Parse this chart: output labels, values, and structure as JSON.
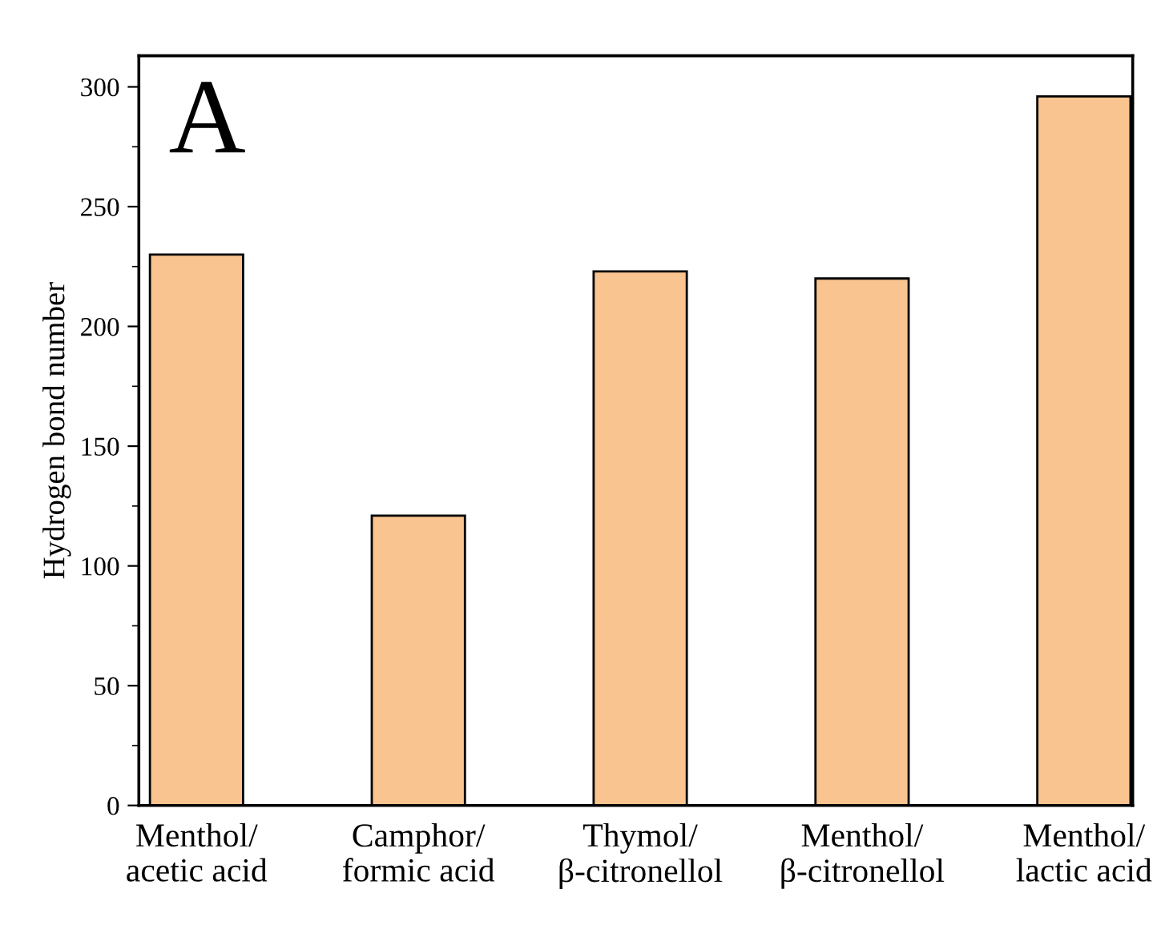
{
  "chart_data": {
    "type": "bar",
    "ylabel": "Hydrogen bond number",
    "categories": [
      "Menthol/\nacetic acid",
      "Camphor/\nformic acid",
      "Thymol/\nβ-citronellol",
      "Menthol/\nβ-citronellol",
      "Menthol/\nlactic acid"
    ],
    "values": [
      230,
      121,
      223,
      220,
      296
    ],
    "color": "#f9c490",
    "ylim": [
      0,
      313
    ],
    "yticks": [
      0,
      50,
      100,
      150,
      200,
      250,
      300
    ],
    "grid": false,
    "legend": false,
    "annotations": [
      "A"
    ]
  }
}
